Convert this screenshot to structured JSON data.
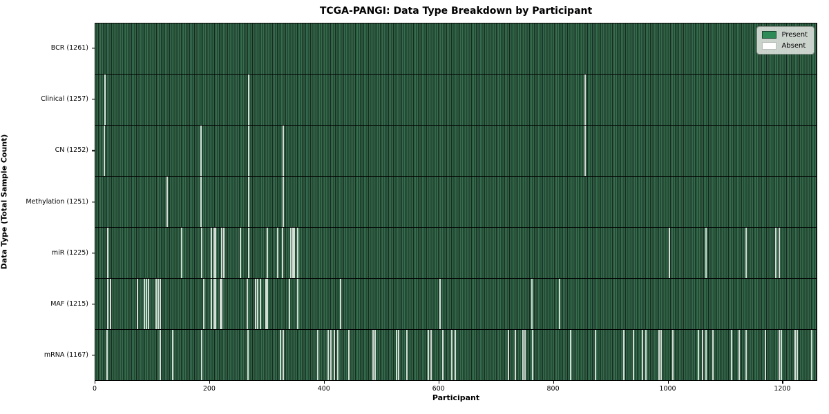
{
  "chart_data": {
    "type": "heatmap",
    "title": "TCGA-PANGI: Data Type Breakdown by Participant",
    "xlabel": "Participant",
    "ylabel": "Data Type (Total Sample Count)",
    "x_range": [
      0,
      1261
    ],
    "x_ticks": [
      0,
      200,
      400,
      600,
      800,
      1000,
      1200
    ],
    "grid": false,
    "legend_position": "upper right",
    "legend": [
      {
        "label": "Present",
        "color": "#2e8b57"
      },
      {
        "label": "Absent",
        "color": "#ffffff"
      }
    ],
    "colors": {
      "present": "#2e8b57",
      "present_stripe_light": "#356e4f",
      "present_stripe_dark": "#17291e",
      "absent_line": "#e2e9e2",
      "frame": "#000000",
      "legend_bg": "#d9ddd9"
    },
    "rows": [
      {
        "label": "BCR (1261)",
        "data_type": "BCR",
        "present_count": 1261,
        "absent_at": []
      },
      {
        "label": "Clinical (1257)",
        "data_type": "Clinical",
        "present_count": 1257,
        "absent_at": [
          16,
          267,
          855
        ]
      },
      {
        "label": "CN (1252)",
        "data_type": "CN",
        "present_count": 1252,
        "absent_at": [
          15,
          184,
          267,
          327,
          855
        ]
      },
      {
        "label": "Methylation (1251)",
        "data_type": "Methylation",
        "present_count": 1251,
        "absent_at": [
          125,
          184,
          267,
          327
        ]
      },
      {
        "label": "miR (1225)",
        "data_type": "miR",
        "present_count": 1225,
        "absent_at": [
          20,
          150,
          185,
          202,
          206,
          209,
          220,
          223,
          253,
          267,
          299,
          318,
          326,
          341,
          344,
          347,
          353,
          1002,
          1066,
          1137,
          1188,
          1194
        ]
      },
      {
        "label": "MAF (1215)",
        "data_type": "MAF",
        "present_count": 1215,
        "absent_at": [
          21,
          25,
          72,
          84,
          88,
          92,
          105,
          109,
          112,
          189,
          202,
          206,
          209,
          217,
          220,
          265,
          279,
          283,
          287,
          297,
          300,
          338,
          353,
          427,
          602,
          762,
          810
        ]
      },
      {
        "label": "mRNA (1167)",
        "data_type": "mRNA",
        "present_count": 1167,
        "absent_at": [
          19,
          112,
          134,
          185,
          266,
          323,
          327,
          388,
          406,
          411,
          417,
          423,
          442,
          484,
          488,
          525,
          529,
          543,
          581,
          586,
          606,
          622,
          628,
          721,
          733,
          746,
          750,
          763,
          830,
          873,
          923,
          940,
          956,
          961,
          984,
          988,
          1008,
          1053,
          1061,
          1067,
          1079,
          1111,
          1125,
          1136,
          1170,
          1194,
          1198,
          1222,
          1226,
          1251
        ]
      }
    ]
  }
}
